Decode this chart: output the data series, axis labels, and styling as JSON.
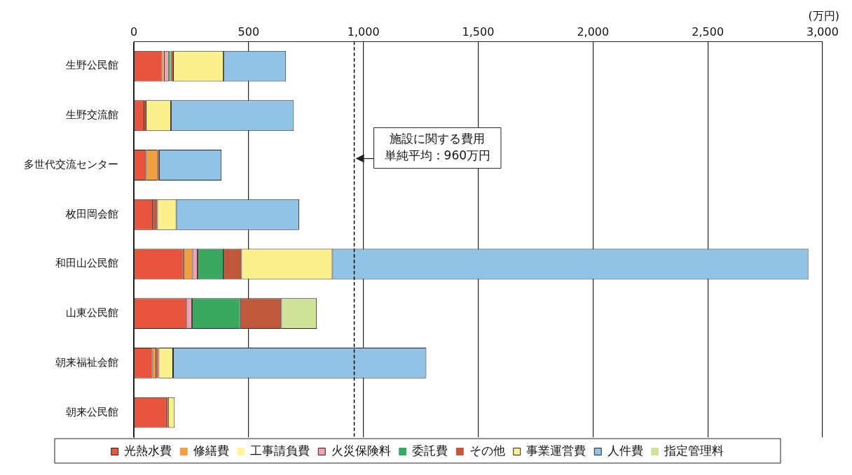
{
  "chart_data": {
    "type": "bar",
    "orientation": "horizontal",
    "stacked": true,
    "xlabel": "(万円)",
    "categories": [
      "生野公民館",
      "生野交流館",
      "多世代交流センター",
      "枚田岡会館",
      "和田山公民館",
      "山東公民館",
      "朝来福祉会館",
      "朝来公民館"
    ],
    "series": [
      {
        "name": "光熱水費",
        "color": "#e8553f",
        "values": [
          124,
          46,
          53,
          83,
          216,
          230,
          81,
          143
        ]
      },
      {
        "name": "修繕費",
        "color": "#f0a040",
        "values": [
          7,
          0,
          50,
          0,
          39,
          0,
          17,
          0
        ]
      },
      {
        "name": "工事請負費",
        "color": "#fff59a",
        "values": [
          0,
          0,
          0,
          0,
          0,
          0,
          0,
          0
        ]
      },
      {
        "name": "火災保険料",
        "color": "#f4a0b4",
        "values": [
          21,
          0,
          0,
          0,
          23,
          23,
          0,
          0
        ]
      },
      {
        "name": "委託費",
        "color": "#3aa860",
        "values": [
          9,
          0,
          0,
          0,
          113,
          210,
          0,
          0
        ]
      },
      {
        "name": "その他",
        "color": "#c0583c",
        "values": [
          10,
          6,
          7,
          19,
          77,
          179,
          10,
          6
        ]
      },
      {
        "name": "事業運営費",
        "color": "#fbf08e",
        "values": [
          220,
          110,
          0,
          83,
          397,
          0,
          63,
          29
        ]
      },
      {
        "name": "人件費",
        "color": "#92c2e4",
        "values": [
          272,
          535,
          272,
          535,
          2073,
          0,
          1103,
          0
        ]
      },
      {
        "name": "指定管理料",
        "color": "#cfe39a",
        "values": [
          0,
          0,
          0,
          0,
          0,
          155,
          0,
          0
        ]
      }
    ],
    "xlim": [
      0,
      3000
    ],
    "xticks": [
      0,
      500,
      {
        "value": 1000,
        "label": "1,000"
      },
      {
        "value": 1500,
        "label": "1,500"
      },
      {
        "value": 2000,
        "label": "2,000"
      },
      {
        "value": 2500,
        "label": "2,500"
      },
      {
        "value": 3000,
        "label": "3,000"
      }
    ],
    "grid": "x",
    "legend": "bottom",
    "ref_lines": [
      {
        "axis": "x",
        "value": 960,
        "label": "施設に関する費用単純平均：960万円",
        "line_style": "dashed",
        "color": "#000000"
      }
    ]
  }
}
